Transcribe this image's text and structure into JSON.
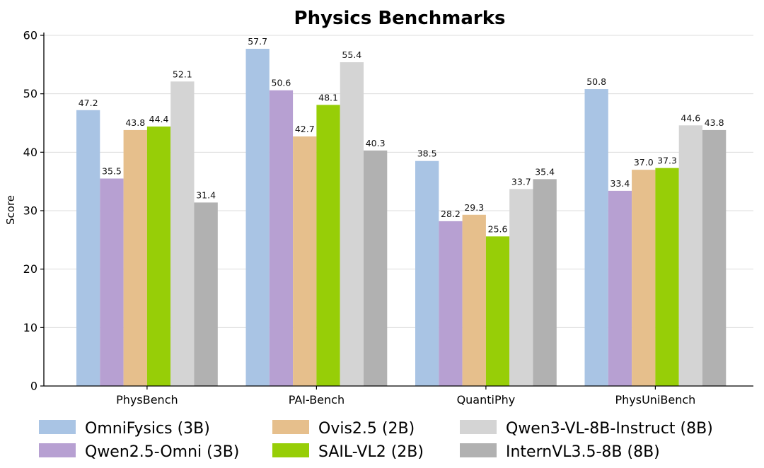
{
  "chart_data": {
    "type": "bar",
    "title": "Physics Benchmarks",
    "xlabel": "",
    "ylabel": "Score",
    "ylim": [
      0,
      60
    ],
    "yticks": [
      0,
      10,
      20,
      30,
      40,
      50,
      60
    ],
    "grid": true,
    "legend_position": "bottom",
    "categories": [
      "PhysBench",
      "PAI-Bench",
      "QuantiPhy",
      "PhysUniBench"
    ],
    "series": [
      {
        "name": "OmniFysics (3B)",
        "color": "#a9c4e4",
        "values": [
          47.2,
          57.7,
          38.5,
          50.8
        ],
        "labels": [
          "47.2",
          "57.7",
          "38.5",
          "50.8"
        ]
      },
      {
        "name": "Qwen2.5-Omni (3B)",
        "color": "#b7a0d2",
        "values": [
          35.5,
          50.6,
          28.2,
          33.4
        ],
        "labels": [
          "35.5",
          "50.6",
          "28.2",
          "33.4"
        ]
      },
      {
        "name": "Ovis2.5 (2B)",
        "color": "#e6bf8c",
        "values": [
          43.8,
          42.7,
          29.3,
          37.0
        ],
        "labels": [
          "43.8",
          "42.7",
          "29.3",
          "37.0"
        ]
      },
      {
        "name": "SAIL-VL2 (2B)",
        "color": "#97ce07",
        "values": [
          44.4,
          48.1,
          25.6,
          37.3
        ],
        "labels": [
          "44.4",
          "48.1",
          "25.6",
          "37.3"
        ]
      },
      {
        "name": "Qwen3-VL-8B-Instruct (8B)",
        "color": "#d4d4d4",
        "values": [
          52.1,
          55.4,
          33.7,
          44.6
        ],
        "labels": [
          "52.1",
          "55.4",
          "33.7",
          "44.6"
        ]
      },
      {
        "name": "InternVL3.5-8B (8B)",
        "color": "#b1b1b1",
        "values": [
          31.4,
          40.3,
          35.4,
          43.8
        ],
        "labels": [
          "31.4",
          "40.3",
          "35.4",
          "43.8"
        ]
      }
    ]
  }
}
